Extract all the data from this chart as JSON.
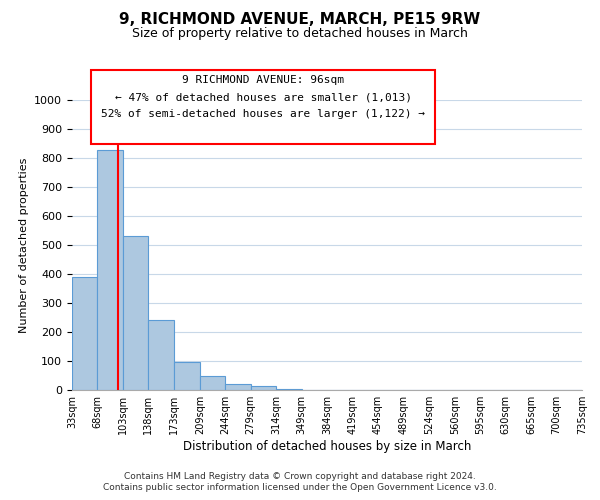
{
  "title": "9, RICHMOND AVENUE, MARCH, PE15 9RW",
  "subtitle": "Size of property relative to detached houses in March",
  "xlabel": "Distribution of detached houses by size in March",
  "ylabel": "Number of detached properties",
  "bar_edges": [
    33,
    68,
    103,
    138,
    173,
    209,
    244,
    279,
    314,
    349,
    384,
    419,
    454,
    489,
    524,
    560,
    595,
    630,
    665,
    700,
    735
  ],
  "bar_heights": [
    390,
    828,
    530,
    240,
    95,
    50,
    20,
    15,
    5,
    0,
    0,
    0,
    0,
    0,
    0,
    0,
    0,
    0,
    0,
    0
  ],
  "tick_labels": [
    "33sqm",
    "68sqm",
    "103sqm",
    "138sqm",
    "173sqm",
    "209sqm",
    "244sqm",
    "279sqm",
    "314sqm",
    "349sqm",
    "384sqm",
    "419sqm",
    "454sqm",
    "489sqm",
    "524sqm",
    "560sqm",
    "595sqm",
    "630sqm",
    "665sqm",
    "700sqm",
    "735sqm"
  ],
  "ylim": [
    0,
    1000
  ],
  "yticks": [
    0,
    100,
    200,
    300,
    400,
    500,
    600,
    700,
    800,
    900,
    1000
  ],
  "bar_color": "#adc8e0",
  "bar_edge_color": "#5b9bd5",
  "red_line_x": 96,
  "annotation_line1": "9 RICHMOND AVENUE: 96sqm",
  "annotation_line2": "← 47% of detached houses are smaller (1,013)",
  "annotation_line3": "52% of semi-detached houses are larger (1,122) →",
  "footer_line1": "Contains HM Land Registry data © Crown copyright and database right 2024.",
  "footer_line2": "Contains public sector information licensed under the Open Government Licence v3.0.",
  "bg_color": "#ffffff",
  "grid_color": "#c8d8e8"
}
